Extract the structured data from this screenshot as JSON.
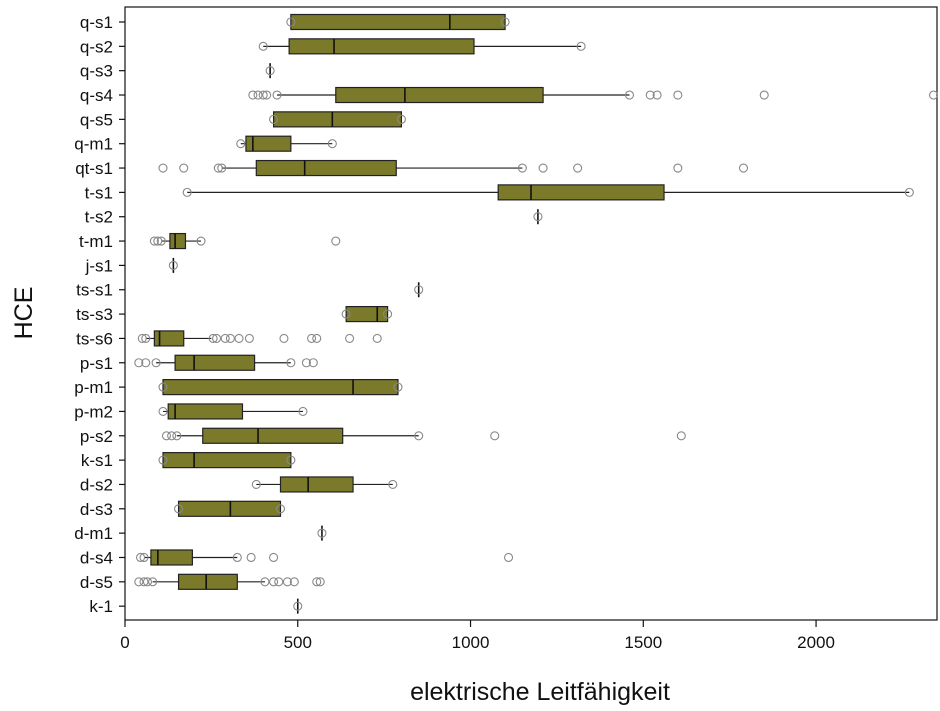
{
  "chart_data": {
    "type": "boxplot",
    "orientation": "horizontal",
    "xlabel": "elektrische Leitfähigkeit",
    "ylabel": "HCE",
    "xlim": [
      0,
      2350
    ],
    "xticks": [
      0,
      500,
      1000,
      1500,
      2000
    ],
    "grid": false,
    "box_color": "#7a7a2a",
    "box_edge_color": "#222222",
    "outlier_color": "#888888",
    "categories": [
      "q-s1",
      "q-s2",
      "q-s3",
      "q-s4",
      "q-s5",
      "q-m1",
      "qt-s1",
      "t-s1",
      "t-s2",
      "t-m1",
      "j-s1",
      "ts-s1",
      "ts-s3",
      "ts-s6",
      "p-s1",
      "p-m1",
      "p-m2",
      "p-s2",
      "k-s1",
      "d-s2",
      "d-s3",
      "d-m1",
      "d-s4",
      "d-s5",
      "k-1"
    ],
    "series": [
      {
        "category": "q-s1",
        "whislo": 480,
        "q1": 480,
        "med": 940,
        "q3": 1100,
        "whishi": 1100,
        "fliers": [
          480,
          1100
        ]
      },
      {
        "category": "q-s2",
        "whislo": 400,
        "q1": 475,
        "med": 605,
        "q3": 1010,
        "whishi": 1320,
        "fliers": [
          400,
          1320
        ]
      },
      {
        "category": "q-s3",
        "whislo": 420,
        "q1": 420,
        "med": 420,
        "q3": 420,
        "whishi": 420,
        "fliers": [
          420
        ]
      },
      {
        "category": "q-s4",
        "whislo": 440,
        "q1": 610,
        "med": 810,
        "q3": 1210,
        "whishi": 1460,
        "fliers": [
          370,
          385,
          400,
          410,
          440,
          1460,
          1520,
          1540,
          1600,
          1850,
          2340
        ]
      },
      {
        "category": "q-s5",
        "whislo": 430,
        "q1": 430,
        "med": 600,
        "q3": 800,
        "whishi": 800,
        "fliers": [
          430,
          800
        ]
      },
      {
        "category": "q-m1",
        "whislo": 335,
        "q1": 350,
        "med": 370,
        "q3": 480,
        "whishi": 600,
        "fliers": [
          335,
          600
        ]
      },
      {
        "category": "qt-s1",
        "whislo": 280,
        "q1": 380,
        "med": 520,
        "q3": 785,
        "whishi": 1150,
        "fliers": [
          110,
          170,
          270,
          280,
          1150,
          1210,
          1310,
          1600,
          1790
        ]
      },
      {
        "category": "t-s1",
        "whislo": 180,
        "q1": 1080,
        "med": 1175,
        "q3": 1560,
        "whishi": 2270,
        "fliers": [
          180,
          2270
        ]
      },
      {
        "category": "t-s2",
        "whislo": 1195,
        "q1": 1195,
        "med": 1195,
        "q3": 1195,
        "whishi": 1195,
        "fliers": [
          1195
        ]
      },
      {
        "category": "t-m1",
        "whislo": 105,
        "q1": 130,
        "med": 145,
        "q3": 175,
        "whishi": 220,
        "fliers": [
          85,
          95,
          105,
          220,
          610
        ]
      },
      {
        "category": "j-s1",
        "whislo": 140,
        "q1": 140,
        "med": 140,
        "q3": 140,
        "whishi": 140,
        "fliers": [
          140
        ]
      },
      {
        "category": "ts-s1",
        "whislo": 850,
        "q1": 850,
        "med": 850,
        "q3": 850,
        "whishi": 850,
        "fliers": [
          850
        ]
      },
      {
        "category": "ts-s3",
        "whislo": 640,
        "q1": 640,
        "med": 730,
        "q3": 760,
        "whishi": 760,
        "fliers": [
          640,
          760
        ]
      },
      {
        "category": "ts-s6",
        "whislo": 60,
        "q1": 85,
        "med": 100,
        "q3": 170,
        "whishi": 250,
        "fliers": [
          50,
          60,
          255,
          265,
          290,
          305,
          330,
          360,
          460,
          540,
          555,
          650,
          730
        ]
      },
      {
        "category": "p-s1",
        "whislo": 90,
        "q1": 145,
        "med": 200,
        "q3": 375,
        "whishi": 480,
        "fliers": [
          40,
          60,
          90,
          480,
          525,
          545
        ]
      },
      {
        "category": "p-m1",
        "whislo": 110,
        "q1": 110,
        "med": 660,
        "q3": 790,
        "whishi": 790,
        "fliers": [
          110,
          790
        ]
      },
      {
        "category": "p-m2",
        "whislo": 110,
        "q1": 125,
        "med": 145,
        "q3": 340,
        "whishi": 515,
        "fliers": [
          110,
          515
        ]
      },
      {
        "category": "p-s2",
        "whislo": 150,
        "q1": 225,
        "med": 385,
        "q3": 630,
        "whishi": 850,
        "fliers": [
          120,
          135,
          150,
          850,
          1070,
          1610
        ]
      },
      {
        "category": "k-s1",
        "whislo": 110,
        "q1": 110,
        "med": 200,
        "q3": 480,
        "whishi": 480,
        "fliers": [
          110,
          480
        ]
      },
      {
        "category": "d-s2",
        "whislo": 380,
        "q1": 450,
        "med": 530,
        "q3": 660,
        "whishi": 775,
        "fliers": [
          380,
          775
        ]
      },
      {
        "category": "d-s3",
        "whislo": 155,
        "q1": 155,
        "med": 305,
        "q3": 450,
        "whishi": 450,
        "fliers": [
          155,
          450
        ]
      },
      {
        "category": "d-m1",
        "whislo": 570,
        "q1": 570,
        "med": 570,
        "q3": 570,
        "whishi": 570,
        "fliers": [
          570
        ]
      },
      {
        "category": "d-s4",
        "whislo": 55,
        "q1": 75,
        "med": 95,
        "q3": 195,
        "whishi": 325,
        "fliers": [
          45,
          55,
          325,
          365,
          430,
          1110
        ]
      },
      {
        "category": "d-s5",
        "whislo": 80,
        "q1": 155,
        "med": 235,
        "q3": 325,
        "whishi": 405,
        "fliers": [
          40,
          55,
          65,
          80,
          405,
          430,
          445,
          470,
          490,
          555,
          565
        ]
      },
      {
        "category": "k-1",
        "whislo": 500,
        "q1": 500,
        "med": 500,
        "q3": 500,
        "whishi": 500,
        "fliers": [
          500
        ]
      }
    ]
  }
}
